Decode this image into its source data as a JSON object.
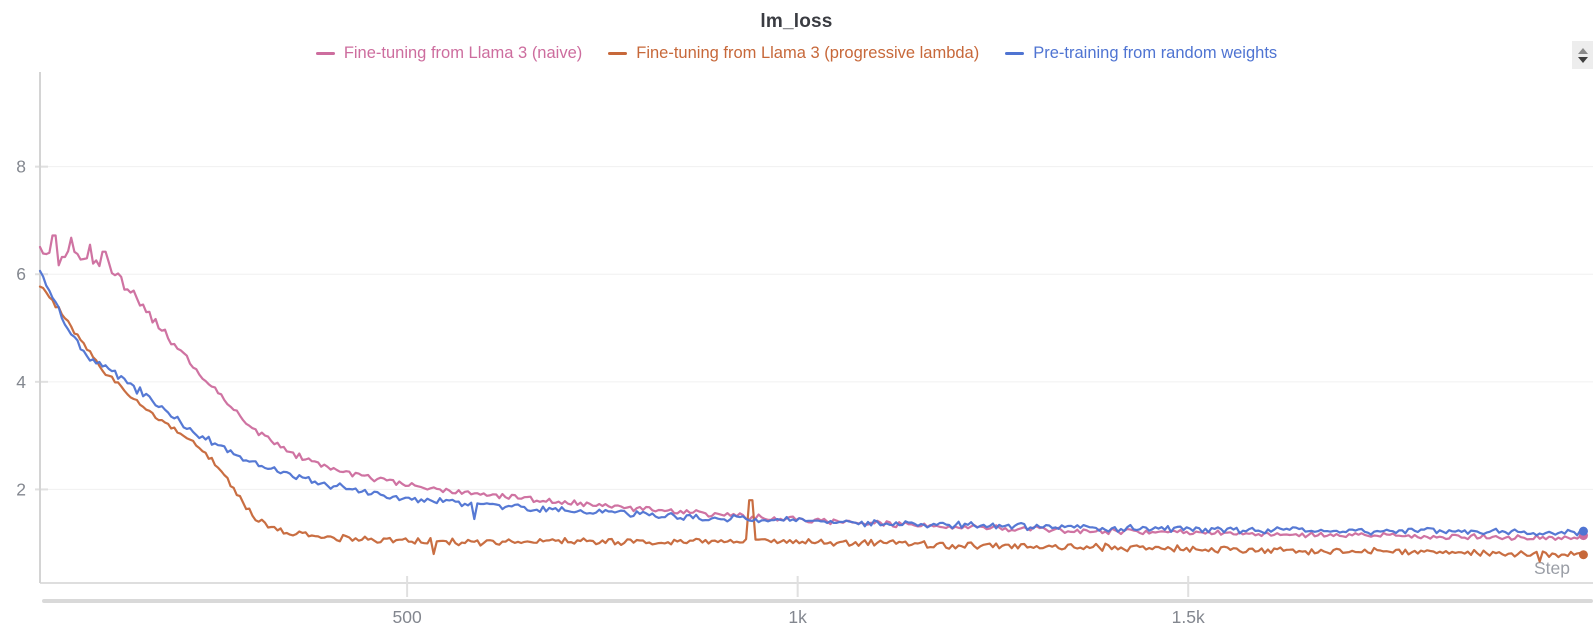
{
  "panel": {
    "title": "lm_loss",
    "stepper_tooltip": "resize-panel-stepper"
  },
  "axes": {
    "x_label": "Step",
    "x_tick_color": "#8a8f98",
    "y_tick_color": "#73777f",
    "axis_line_color": "#d6d6d6",
    "grid_color": "#f909f9"
  },
  "colors": {
    "background": "#ffffff",
    "title_text": "#3a3c42",
    "gridline": "#f0f0f0",
    "axis_line": "#d4d4d4",
    "tick_mark": "#e0e0e0",
    "scrollbar": "#d9d9d9",
    "x_label_text": "#9a9ea6",
    "tick_label_text": "#83878f"
  },
  "chart_data": {
    "type": "line",
    "title": "lm_loss",
    "xlabel": "Step",
    "ylabel": "",
    "xlim": [
      30,
      2008
    ],
    "ylim": [
      0.26,
      9.76
    ],
    "grid": "horizontal-faint",
    "legend_position": "top-center",
    "x_ticks": [
      {
        "value": 500,
        "label": "500"
      },
      {
        "value": 1000,
        "label": "1k"
      },
      {
        "value": 1500,
        "label": "1.5k"
      }
    ],
    "y_ticks": [
      {
        "value": 2,
        "label": "2"
      },
      {
        "value": 4,
        "label": "4"
      },
      {
        "value": 6,
        "label": "6"
      },
      {
        "value": 8,
        "label": "8"
      }
    ],
    "series": [
      {
        "name": "Fine-tuning from Llama 3 (naive)",
        "color": "#cd6d9e",
        "points": [
          [
            30,
            6.45
          ],
          [
            45,
            6.3
          ],
          [
            60,
            6.28
          ],
          [
            75,
            6.4
          ],
          [
            90,
            6.3
          ],
          [
            105,
            6.2
          ],
          [
            118,
            6.15
          ],
          [
            130,
            5.95
          ],
          [
            145,
            5.7
          ],
          [
            160,
            5.45
          ],
          [
            175,
            5.15
          ],
          [
            190,
            4.9
          ],
          [
            205,
            4.65
          ],
          [
            220,
            4.4
          ],
          [
            235,
            4.15
          ],
          [
            255,
            3.85
          ],
          [
            275,
            3.55
          ],
          [
            295,
            3.2
          ],
          [
            315,
            3.0
          ],
          [
            335,
            2.82
          ],
          [
            360,
            2.62
          ],
          [
            385,
            2.48
          ],
          [
            410,
            2.35
          ],
          [
            440,
            2.25
          ],
          [
            470,
            2.17
          ],
          [
            500,
            2.1
          ],
          [
            530,
            2.02
          ],
          [
            560,
            1.96
          ],
          [
            600,
            1.9
          ],
          [
            650,
            1.82
          ],
          [
            700,
            1.76
          ],
          [
            750,
            1.7
          ],
          [
            800,
            1.64
          ],
          [
            850,
            1.58
          ],
          [
            900,
            1.53
          ],
          [
            950,
            1.48
          ],
          [
            1000,
            1.44
          ],
          [
            1060,
            1.39
          ],
          [
            1120,
            1.35
          ],
          [
            1180,
            1.31
          ],
          [
            1250,
            1.28
          ],
          [
            1320,
            1.25
          ],
          [
            1400,
            1.22
          ],
          [
            1480,
            1.2
          ],
          [
            1560,
            1.18
          ],
          [
            1650,
            1.16
          ],
          [
            1750,
            1.14
          ],
          [
            1850,
            1.12
          ],
          [
            1930,
            1.11
          ],
          [
            2008,
            1.1
          ]
        ],
        "noise": [
          [
            30,
            0.1
          ],
          [
            130,
            0.08
          ],
          [
            250,
            0.05
          ],
          [
            500,
            0.045
          ],
          [
            1000,
            0.04
          ],
          [
            2008,
            0.04
          ]
        ],
        "spikes": [
          {
            "step": 48,
            "value": 6.72
          },
          {
            "step": 70,
            "value": 6.68
          },
          {
            "step": 93,
            "value": 6.55
          },
          {
            "step": 112,
            "value": 6.42
          }
        ]
      },
      {
        "name": "Fine-tuning from Llama 3 (progressive lambda)",
        "color": "#c7683a",
        "points": [
          [
            30,
            5.78
          ],
          [
            42,
            5.6
          ],
          [
            55,
            5.35
          ],
          [
            68,
            5.05
          ],
          [
            80,
            4.8
          ],
          [
            92,
            4.55
          ],
          [
            105,
            4.32
          ],
          [
            118,
            4.12
          ],
          [
            132,
            3.92
          ],
          [
            148,
            3.72
          ],
          [
            165,
            3.52
          ],
          [
            182,
            3.32
          ],
          [
            200,
            3.12
          ],
          [
            218,
            2.95
          ],
          [
            235,
            2.75
          ],
          [
            250,
            2.55
          ],
          [
            262,
            2.35
          ],
          [
            275,
            2.1
          ],
          [
            288,
            1.8
          ],
          [
            300,
            1.55
          ],
          [
            312,
            1.4
          ],
          [
            325,
            1.3
          ],
          [
            345,
            1.22
          ],
          [
            370,
            1.15
          ],
          [
            400,
            1.1
          ],
          [
            440,
            1.07
          ],
          [
            480,
            1.05
          ],
          [
            530,
            1.03
          ],
          [
            580,
            1.02
          ],
          [
            640,
            1.03
          ],
          [
            700,
            1.04
          ],
          [
            760,
            1.03
          ],
          [
            820,
            1.02
          ],
          [
            880,
            1.04
          ],
          [
            940,
            1.06
          ],
          [
            1000,
            1.02
          ],
          [
            1060,
            1.0
          ],
          [
            1130,
            0.99
          ],
          [
            1200,
            0.97
          ],
          [
            1280,
            0.95
          ],
          [
            1360,
            0.93
          ],
          [
            1440,
            0.91
          ],
          [
            1520,
            0.89
          ],
          [
            1600,
            0.87
          ],
          [
            1680,
            0.86
          ],
          [
            1760,
            0.85
          ],
          [
            1840,
            0.83
          ],
          [
            1920,
            0.81
          ],
          [
            2008,
            0.8
          ]
        ],
        "noise": [
          [
            30,
            0.05
          ],
          [
            300,
            0.05
          ],
          [
            1000,
            0.05
          ],
          [
            2008,
            0.05
          ]
        ],
        "spikes": [
          {
            "step": 940,
            "value": 1.8
          },
          {
            "step": 535,
            "value": 0.8
          },
          {
            "step": 1950,
            "value": 0.66
          }
        ]
      },
      {
        "name": "Pre-training from random weights",
        "color": "#4f74d2",
        "points": [
          [
            30,
            6.08
          ],
          [
            40,
            5.75
          ],
          [
            50,
            5.45
          ],
          [
            62,
            5.1
          ],
          [
            75,
            4.78
          ],
          [
            88,
            4.5
          ],
          [
            100,
            4.4
          ],
          [
            112,
            4.32
          ],
          [
            125,
            4.15
          ],
          [
            140,
            4.0
          ],
          [
            158,
            3.82
          ],
          [
            175,
            3.62
          ],
          [
            195,
            3.4
          ],
          [
            215,
            3.2
          ],
          [
            235,
            3.0
          ],
          [
            258,
            2.82
          ],
          [
            280,
            2.62
          ],
          [
            300,
            2.52
          ],
          [
            325,
            2.38
          ],
          [
            350,
            2.28
          ],
          [
            380,
            2.15
          ],
          [
            410,
            2.05
          ],
          [
            440,
            1.98
          ],
          [
            470,
            1.9
          ],
          [
            500,
            1.84
          ],
          [
            540,
            1.78
          ],
          [
            580,
            1.73
          ],
          [
            620,
            1.69
          ],
          [
            670,
            1.64
          ],
          [
            720,
            1.6
          ],
          [
            780,
            1.55
          ],
          [
            840,
            1.51
          ],
          [
            900,
            1.47
          ],
          [
            960,
            1.44
          ],
          [
            1020,
            1.41
          ],
          [
            1100,
            1.37
          ],
          [
            1180,
            1.34
          ],
          [
            1260,
            1.32
          ],
          [
            1350,
            1.29
          ],
          [
            1440,
            1.27
          ],
          [
            1530,
            1.25
          ],
          [
            1620,
            1.24
          ],
          [
            1720,
            1.23
          ],
          [
            1820,
            1.22
          ],
          [
            1920,
            1.21
          ],
          [
            2008,
            1.2
          ]
        ],
        "noise": [
          [
            30,
            0.04
          ],
          [
            150,
            0.06
          ],
          [
            400,
            0.05
          ],
          [
            1000,
            0.05
          ],
          [
            2008,
            0.045
          ]
        ],
        "spikes": [
          {
            "step": 585,
            "value": 1.45
          }
        ]
      }
    ]
  }
}
